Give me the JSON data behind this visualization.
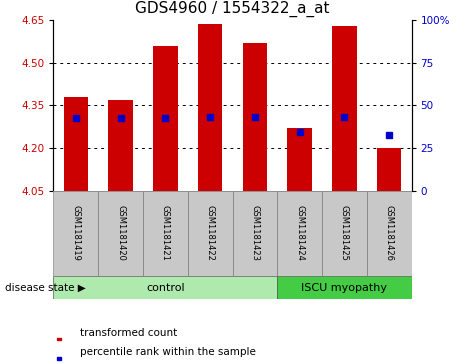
{
  "title": "GDS4960 / 1554322_a_at",
  "samples": [
    "GSM1181419",
    "GSM1181420",
    "GSM1181421",
    "GSM1181422",
    "GSM1181423",
    "GSM1181424",
    "GSM1181425",
    "GSM1181426"
  ],
  "bar_bottom": 4.05,
  "bar_tops": [
    4.38,
    4.37,
    4.56,
    4.635,
    4.57,
    4.27,
    4.63,
    4.2
  ],
  "percentile_values": [
    4.305,
    4.305,
    4.305,
    4.308,
    4.308,
    4.255,
    4.308,
    4.245
  ],
  "ylim_left": [
    4.05,
    4.65
  ],
  "ylim_right": [
    0,
    100
  ],
  "yticks_left": [
    4.05,
    4.2,
    4.35,
    4.5,
    4.65
  ],
  "yticks_right": [
    0,
    25,
    50,
    75,
    100
  ],
  "bar_color": "#cc0000",
  "percentile_color": "#0000cc",
  "control_count": 5,
  "iscu_count": 3,
  "control_label": "control",
  "iscu_label": "ISCU myopathy",
  "control_bg": "#aeeaae",
  "iscu_bg": "#44cc44",
  "disease_state_label": "disease state",
  "legend_transformed": "transformed count",
  "legend_percentile": "percentile rank within the sample",
  "bar_width": 0.55,
  "xlabel_area_bg": "#c8c8c8",
  "title_fontsize": 11,
  "tick_fontsize": 7.5,
  "sample_fontsize": 6,
  "disease_fontsize": 8,
  "legend_fontsize": 7.5
}
